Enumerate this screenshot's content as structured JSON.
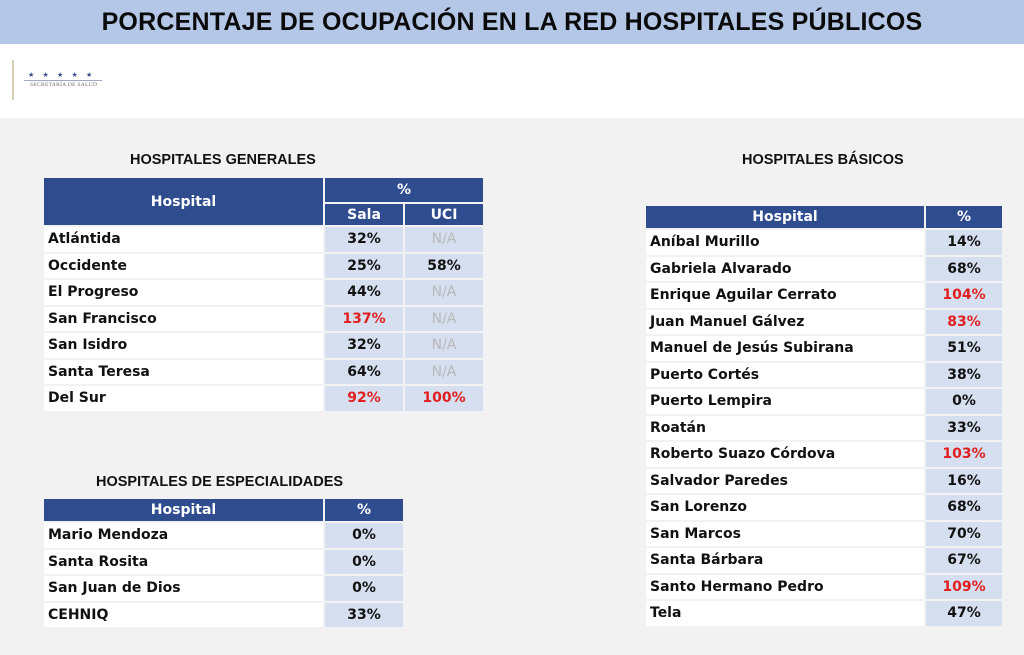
{
  "title": "PORCENTAJE DE OCUPACIÓN EN LA RED HOSPITALES PÚBLICOS",
  "logo": {
    "stars": "★ ★ ★ ★ ★",
    "text": "SECRETARÍA DE SALUD"
  },
  "generales": {
    "title": "HOSPITALES GENERALES",
    "col_hospital": "Hospital",
    "col_pct": "%",
    "col_sala": "Sala",
    "col_uci": "UCI",
    "rows": [
      {
        "name": "Atlántida",
        "sala": "32%",
        "uci": "N/A"
      },
      {
        "name": "Occidente",
        "sala": "25%",
        "uci": "58%"
      },
      {
        "name": "El Progreso",
        "sala": "44%",
        "uci": "N/A"
      },
      {
        "name": "San Francisco",
        "sala": "137%",
        "uci": "N/A"
      },
      {
        "name": "San Isidro",
        "sala": "32%",
        "uci": "N/A"
      },
      {
        "name": "Santa Teresa",
        "sala": "64%",
        "uci": "N/A"
      },
      {
        "name": "Del Sur",
        "sala": "92%",
        "uci": "100%"
      }
    ]
  },
  "especialidades": {
    "title": "HOSPITALES DE ESPECIALIDADES",
    "col_hospital": "Hospital",
    "col_pct": "%",
    "rows": [
      {
        "name": "Mario Mendoza",
        "pct": "0%"
      },
      {
        "name": "Santa Rosita",
        "pct": "0%"
      },
      {
        "name": "San Juan de Dios",
        "pct": "0%"
      },
      {
        "name": "CEHNIQ",
        "pct": "33%"
      }
    ]
  },
  "basicos": {
    "title": "HOSPITALES BÁSICOS",
    "col_hospital": "Hospital",
    "col_pct": "%",
    "rows": [
      {
        "name": "Aníbal Murillo",
        "pct": "14%"
      },
      {
        "name": "Gabriela Alvarado",
        "pct": "68%"
      },
      {
        "name": "Enrique Aguilar Cerrato",
        "pct": "104%"
      },
      {
        "name": "Juan Manuel Gálvez",
        "pct": "83%"
      },
      {
        "name": "Manuel de Jesús Subirana",
        "pct": "51%"
      },
      {
        "name": "Puerto Cortés",
        "pct": "38%"
      },
      {
        "name": "Puerto Lempira",
        "pct": "0%"
      },
      {
        "name": "Roatán",
        "pct": "33%"
      },
      {
        "name": "Roberto Suazo Córdova",
        "pct": "103%"
      },
      {
        "name": "Salvador Paredes",
        "pct": "16%"
      },
      {
        "name": "San Lorenzo",
        "pct": "68%"
      },
      {
        "name": "San Marcos",
        "pct": "70%"
      },
      {
        "name": "Santa Bárbara",
        "pct": "67%"
      },
      {
        "name": "Santo Hermano Pedro",
        "pct": "109%"
      },
      {
        "name": "Tela",
        "pct": "47%"
      }
    ]
  },
  "colors": {
    "header_blue": "#2f4c8f",
    "value_cell": "#d6dff0",
    "alert_red": "#e02020",
    "na_gray": "#b8b8b8",
    "title_bar": "#b4c7e7"
  }
}
